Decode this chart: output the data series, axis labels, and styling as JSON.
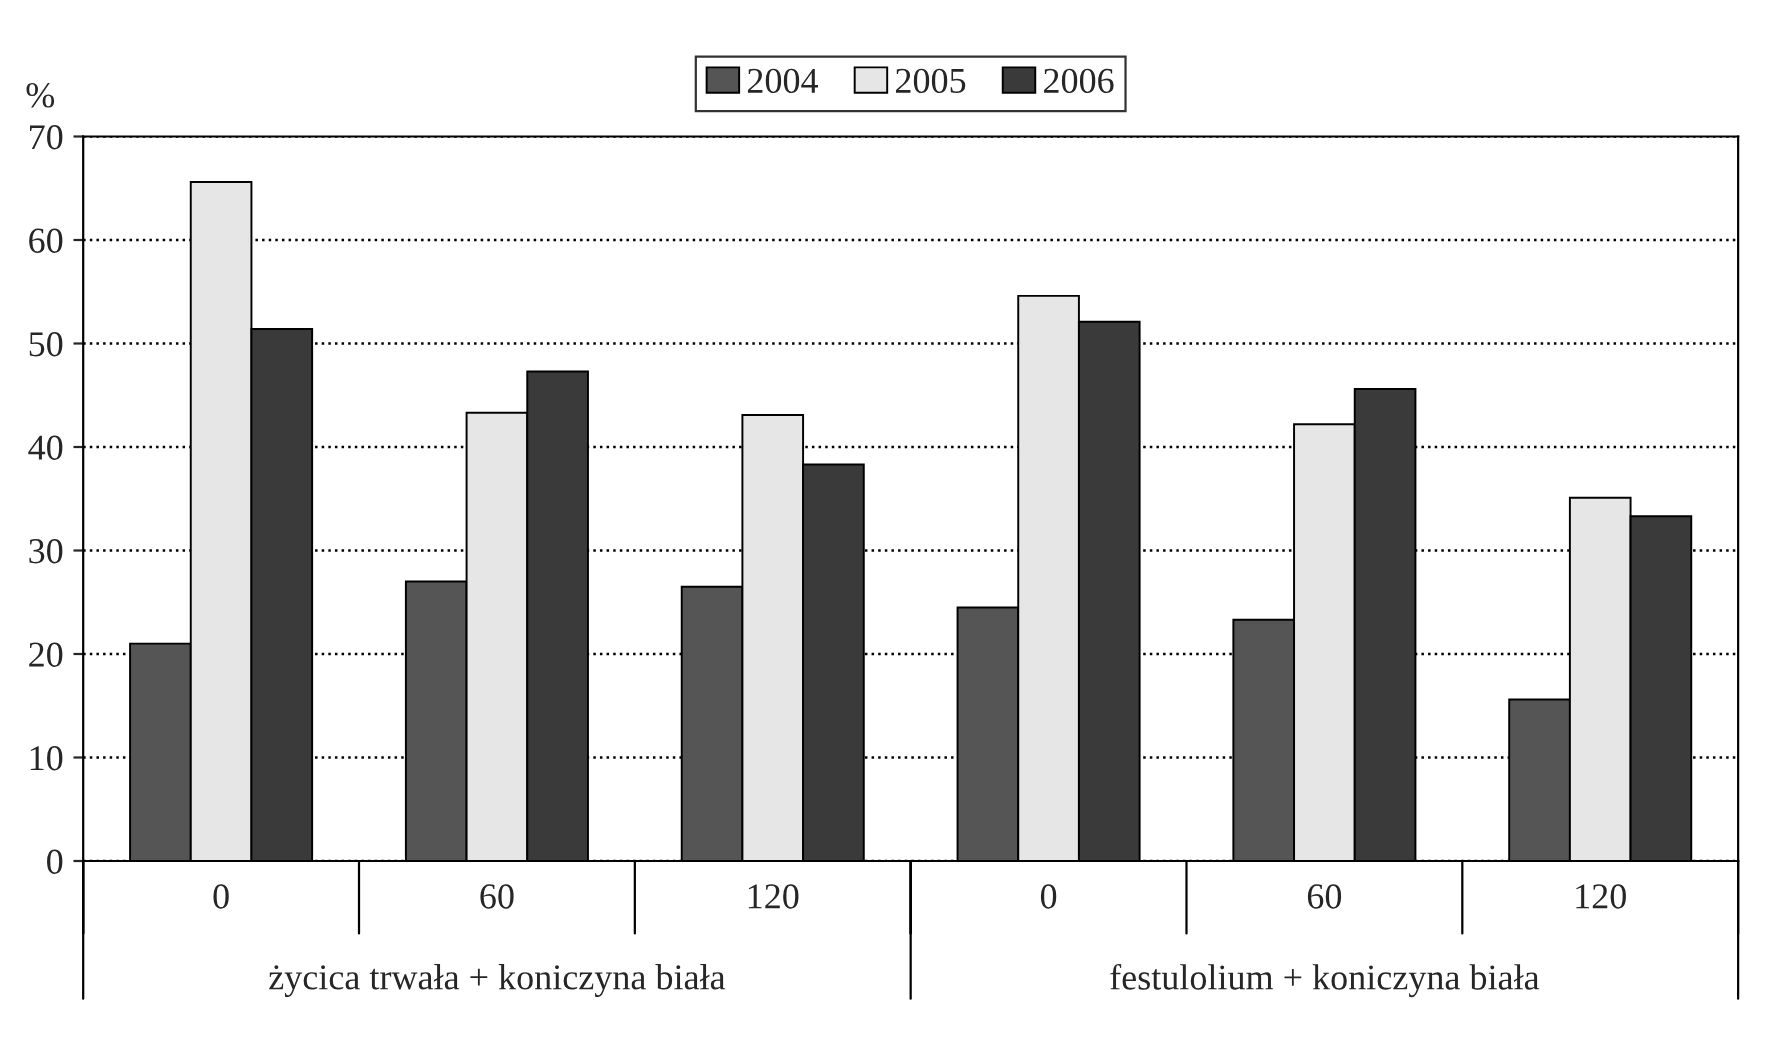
{
  "chart_data": {
    "type": "bar",
    "ylabel": "%",
    "categories": [
      "0",
      "60",
      "120",
      "0",
      "60",
      "120"
    ],
    "series": [
      {
        "name": "2004",
        "color": "#555555",
        "values": [
          21.0,
          27.0,
          26.5,
          24.5,
          23.3,
          15.6
        ]
      },
      {
        "name": "2005",
        "color": "#e6e6e6",
        "values": [
          65.6,
          43.3,
          43.1,
          54.6,
          42.2,
          35.1
        ]
      },
      {
        "name": "2006",
        "color": "#3a3a3a",
        "values": [
          51.4,
          47.3,
          38.3,
          52.1,
          45.6,
          33.3
        ]
      }
    ],
    "ylim": [
      0,
      70
    ],
    "yticks": [
      0,
      10,
      20,
      30,
      40,
      50,
      60,
      70
    ],
    "grid": "y",
    "legend": "top",
    "annotations": [
      "życica trwała + koniczyna biała",
      "festulolium + koniczyna biała"
    ]
  }
}
